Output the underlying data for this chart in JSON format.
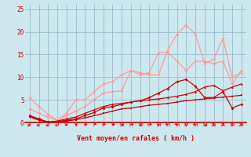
{
  "bg_color": "#cce8ee",
  "grid_color": "#99bbcc",
  "x_values": [
    0,
    1,
    2,
    3,
    4,
    5,
    6,
    7,
    8,
    9,
    10,
    11,
    12,
    13,
    14,
    15,
    16,
    17,
    18,
    19,
    20,
    21,
    22,
    23
  ],
  "xlabel": "Vent moyen/en rafales ( km/h )",
  "ylim": [
    0,
    26
  ],
  "xlim": [
    -0.5,
    23.5
  ],
  "yticks": [
    0,
    5,
    10,
    15,
    20,
    25
  ],
  "dark_color": "#cc0000",
  "light_color": "#ff9999",
  "line_light2": [
    5.5,
    3.5,
    1.8,
    0.5,
    2.0,
    5.0,
    5.0,
    6.8,
    8.5,
    9.0,
    10.5,
    11.5,
    11.0,
    10.5,
    10.5,
    16.0,
    19.5,
    21.5,
    19.5,
    13.0,
    14.0,
    18.5,
    10.0,
    11.0
  ],
  "line_light1": [
    3.0,
    2.0,
    1.2,
    0.5,
    1.5,
    2.5,
    3.5,
    5.0,
    6.5,
    6.8,
    7.0,
    11.5,
    10.5,
    11.0,
    15.5,
    15.5,
    13.5,
    11.5,
    13.5,
    13.5,
    13.0,
    13.5,
    8.5,
    11.5
  ],
  "line_dark3": [
    1.5,
    0.6,
    0.1,
    0.3,
    0.8,
    1.2,
    2.0,
    2.8,
    3.5,
    4.0,
    4.2,
    4.5,
    4.8,
    5.0,
    5.2,
    5.5,
    5.8,
    6.2,
    6.8,
    7.8,
    8.2,
    7.0,
    7.8,
    8.5
  ],
  "line_dark2": [
    1.5,
    0.8,
    0.1,
    0.2,
    0.5,
    0.8,
    1.5,
    2.2,
    3.2,
    3.5,
    4.0,
    4.5,
    4.8,
    5.5,
    6.5,
    7.5,
    9.0,
    9.5,
    8.0,
    5.5,
    5.5,
    6.8,
    3.2,
    4.0
  ],
  "line_dark1": [
    1.2,
    0.5,
    0.1,
    0.1,
    0.3,
    0.6,
    1.0,
    1.5,
    2.0,
    2.5,
    3.0,
    3.2,
    3.5,
    3.8,
    4.0,
    4.2,
    4.5,
    4.8,
    5.0,
    5.2,
    5.4,
    5.6,
    5.8,
    6.0
  ],
  "wind_arrows": [
    45,
    45,
    45,
    45,
    90,
    270,
    225,
    225,
    225,
    225,
    270,
    225,
    270,
    225,
    180,
    135,
    135,
    180,
    135,
    315,
    0,
    0,
    0,
    0
  ]
}
